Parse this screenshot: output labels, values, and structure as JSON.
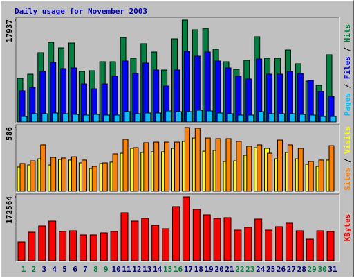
{
  "chart_data": [
    {
      "type": "bar",
      "title": "Daily usage for November 2003",
      "legend_separator": "/",
      "ylim": [
        0,
        17937
      ],
      "yticks": [
        17937
      ],
      "series": [
        {
          "name": "Pages",
          "color": "#00c0ff",
          "values": [
            976,
            1464,
            1464,
            1586,
            1464,
            1342,
            1220,
            1342,
            1220,
            1220,
            1830,
            1464,
            1586,
            1586,
            1952,
            1830,
            1830,
            2074,
            1952,
            1586,
            1464,
            1220,
            1220,
            1830,
            1464,
            1464,
            1464,
            1342,
            1220,
            976,
            976
          ]
        },
        {
          "name": "Files",
          "color": "#0000ff",
          "values": [
            5490,
            6100,
            8906,
            10492,
            9394,
            9516,
            6710,
            5856,
            6710,
            8052,
            10736,
            8540,
            10370,
            9150,
            6344,
            9150,
            12444,
            11590,
            12322,
            10736,
            9516,
            8052,
            7564,
            11102,
            8418,
            8418,
            8906,
            8540,
            7320,
            5368,
            4514
          ]
        },
        {
          "name": "Hits",
          "color": "#008040",
          "values": [
            7686,
            8418,
            12200,
            14030,
            13054,
            13908,
            8906,
            9028,
            10614,
            10614,
            14884,
            11224,
            13786,
            12322,
            9150,
            14640,
            17937,
            16226,
            16470,
            12810,
            10614,
            9272,
            10858,
            15006,
            11224,
            11224,
            12688,
            10248,
            7198,
            6466,
            11834
          ]
        }
      ]
    },
    {
      "type": "bar",
      "ylim": [
        0,
        586
      ],
      "yticks": [
        586
      ],
      "series": [
        {
          "name": "Sites",
          "color": "#ff8000",
          "values": [
            255,
            280,
            427,
            312,
            306,
            318,
            287,
            229,
            261,
            344,
            478,
            401,
            446,
            452,
            452,
            452,
            586,
            580,
            490,
            484,
            484,
            459,
            414,
            427,
            350,
            471,
            427,
            395,
            274,
            287,
            420
          ]
        },
        {
          "name": "Visits",
          "color": "#ffff00",
          "values": [
            223,
            242,
            299,
            242,
            293,
            287,
            261,
            210,
            255,
            268,
            350,
            395,
            357,
            363,
            363,
            395,
            459,
            490,
            369,
            376,
            274,
            280,
            331,
            401,
            395,
            299,
            357,
            299,
            248,
            229,
            287
          ]
        }
      ]
    },
    {
      "type": "bar",
      "ylim": [
        0,
        172564
      ],
      "yticks": [
        172564
      ],
      "categories": [
        1,
        2,
        3,
        4,
        5,
        6,
        7,
        8,
        9,
        10,
        11,
        12,
        13,
        14,
        15,
        16,
        17,
        18,
        19,
        20,
        21,
        22,
        23,
        24,
        25,
        26,
        27,
        28,
        29,
        30,
        31
      ],
      "category_colors": [
        "#008040",
        "#008040",
        "#000080",
        "#000080",
        "#000080",
        "#000080",
        "#000080",
        "#008040",
        "#008040",
        "#000080",
        "#000080",
        "#000080",
        "#000080",
        "#000080",
        "#008040",
        "#008040",
        "#000080",
        "#000080",
        "#000080",
        "#000080",
        "#000080",
        "#008040",
        "#008040",
        "#000080",
        "#000080",
        "#000080",
        "#000080",
        "#000080",
        "#008040",
        "#008040",
        "#000080"
      ],
      "series": [
        {
          "name": "KBytes",
          "color": "#ff0000",
          "values": [
            50652,
            76916,
            93800,
            106932,
            78792,
            80668,
            69412,
            69412,
            75040,
            78792,
            129444,
            106932,
            114436,
            95676,
            86296,
            146328,
            172564,
            138824,
            123816,
            114436,
            116312,
            82544,
            90048,
            112560,
            82544,
            91924,
            101304,
            80668,
            58156,
            80668,
            78792
          ]
        }
      ]
    }
  ]
}
